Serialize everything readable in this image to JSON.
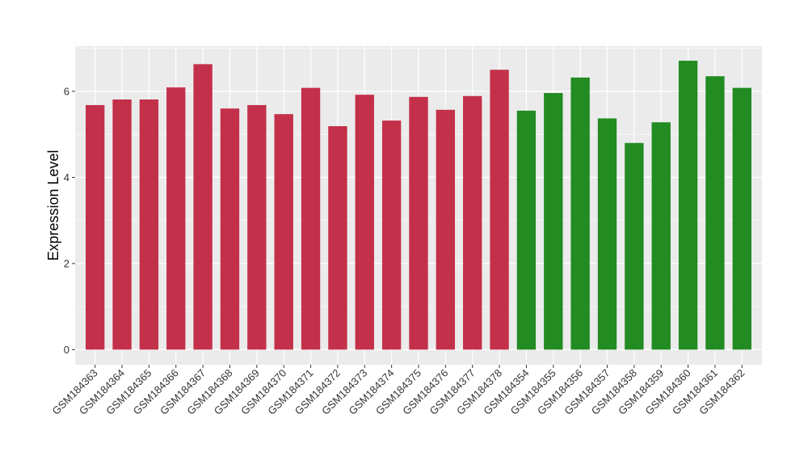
{
  "chart_data": {
    "type": "bar",
    "title": "",
    "xlabel": "",
    "ylabel": "Expression Level",
    "ylim": [
      -0.35,
      7.05
    ],
    "yticks": [
      0,
      2,
      4,
      6
    ],
    "grid": true,
    "legend": "none",
    "colors": {
      "group1": "#C3304A",
      "group2": "#228B22",
      "panel": "#EBEBEB",
      "grid": "#FFFFFF"
    },
    "categories": [
      "GSM184363",
      "GSM184364",
      "GSM184365",
      "GSM184366",
      "GSM184367",
      "GSM184368",
      "GSM184369",
      "GSM184370",
      "GSM184371",
      "GSM184372",
      "GSM184373",
      "GSM184374",
      "GSM184375",
      "GSM184376",
      "GSM184377",
      "GSM184378",
      "GSM184354",
      "GSM184355",
      "GSM184356",
      "GSM184357",
      "GSM184358",
      "GSM184359",
      "GSM184360",
      "GSM184361",
      "GSM184362"
    ],
    "values": [
      5.68,
      5.81,
      5.81,
      6.09,
      6.63,
      5.6,
      5.68,
      5.47,
      6.08,
      5.19,
      5.92,
      5.32,
      5.87,
      5.57,
      5.89,
      6.5,
      5.55,
      5.96,
      6.32,
      5.37,
      4.8,
      5.28,
      6.71,
      6.35,
      6.08
    ],
    "groups": [
      "group1",
      "group1",
      "group1",
      "group1",
      "group1",
      "group1",
      "group1",
      "group1",
      "group1",
      "group1",
      "group1",
      "group1",
      "group1",
      "group1",
      "group1",
      "group1",
      "group2",
      "group2",
      "group2",
      "group2",
      "group2",
      "group2",
      "group2",
      "group2",
      "group2"
    ]
  }
}
